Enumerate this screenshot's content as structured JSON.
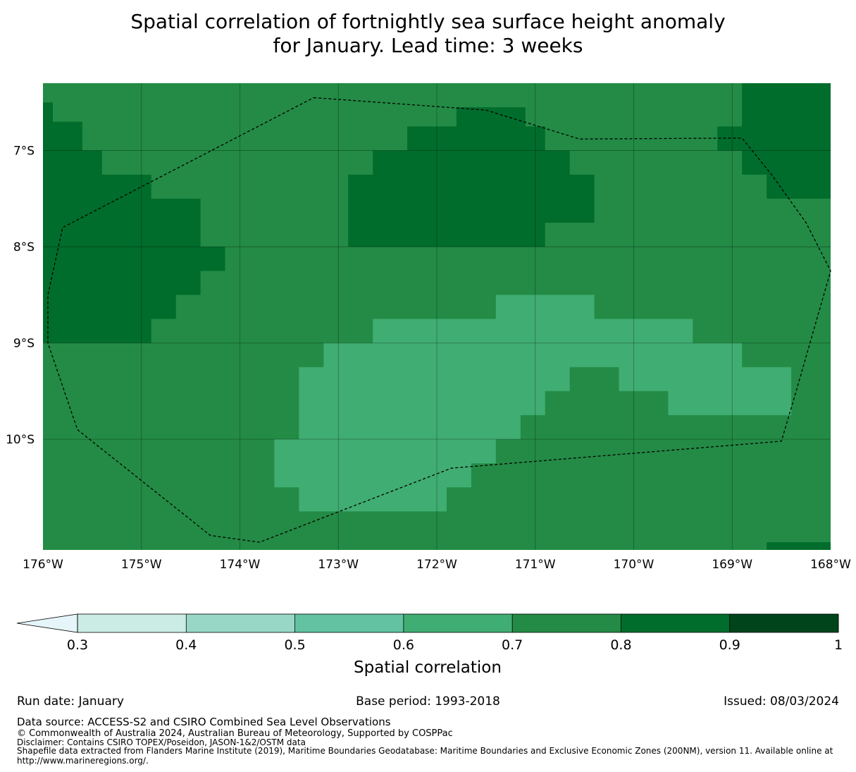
{
  "title_line1": "Spatial correlation of fortnightly sea surface height anomaly",
  "title_line2": "for January. Lead time: 3 weeks",
  "map": {
    "lon_range": [
      -176,
      -168
    ],
    "lat_range": [
      -11.15,
      -6.3
    ],
    "lon_ticks": [
      {
        "value": -176,
        "label": "176°W"
      },
      {
        "value": -175,
        "label": "175°W"
      },
      {
        "value": -174,
        "label": "174°W"
      },
      {
        "value": -173,
        "label": "173°W"
      },
      {
        "value": -172,
        "label": "172°W"
      },
      {
        "value": -171,
        "label": "171°W"
      },
      {
        "value": -170,
        "label": "170°W"
      },
      {
        "value": -169,
        "label": "169°W"
      },
      {
        "value": -168,
        "label": "168°W"
      }
    ],
    "lat_ticks": [
      {
        "value": -7,
        "label": "7°S"
      },
      {
        "value": -8,
        "label": "8°S"
      },
      {
        "value": -9,
        "label": "9°S"
      },
      {
        "value": -10,
        "label": "10°S"
      }
    ],
    "background_class": "0.7-0.8",
    "regions": [
      {
        "class": "0.8-0.9",
        "points": [
          [
            -176,
            -6.5
          ],
          [
            -175.9,
            -6.5
          ],
          [
            -175.9,
            -6.7
          ],
          [
            -175.6,
            -6.7
          ],
          [
            -175.6,
            -7
          ],
          [
            -175.4,
            -7
          ],
          [
            -175.4,
            -7.25
          ],
          [
            -174.9,
            -7.25
          ],
          [
            -174.9,
            -7.5
          ],
          [
            -174.4,
            -7.5
          ],
          [
            -174.4,
            -8
          ],
          [
            -174.15,
            -8
          ],
          [
            -174.15,
            -8.25
          ],
          [
            -174.4,
            -8.25
          ],
          [
            -174.4,
            -8.5
          ],
          [
            -174.65,
            -8.5
          ],
          [
            -174.65,
            -8.75
          ],
          [
            -174.9,
            -8.75
          ],
          [
            -174.9,
            -9
          ],
          [
            -176,
            -9
          ]
        ]
      },
      {
        "class": "0.8-0.9",
        "points": [
          [
            -171.8,
            -6.55
          ],
          [
            -171.1,
            -6.55
          ],
          [
            -171.1,
            -6.75
          ],
          [
            -170.9,
            -6.75
          ],
          [
            -170.9,
            -7
          ],
          [
            -170.65,
            -7
          ],
          [
            -170.65,
            -7.25
          ],
          [
            -170.4,
            -7.25
          ],
          [
            -170.4,
            -7.75
          ],
          [
            -170.9,
            -7.75
          ],
          [
            -170.9,
            -8
          ],
          [
            -172.9,
            -8
          ],
          [
            -172.9,
            -7.25
          ],
          [
            -172.65,
            -7.25
          ],
          [
            -172.65,
            -7
          ],
          [
            -172.3,
            -7
          ],
          [
            -172.3,
            -6.75
          ],
          [
            -171.8,
            -6.75
          ]
        ]
      },
      {
        "class": "0.8-0.9",
        "points": [
          [
            -168.9,
            -6.3
          ],
          [
            -168,
            -6.3
          ],
          [
            -168,
            -7.5
          ],
          [
            -168.65,
            -7.5
          ],
          [
            -168.65,
            -7.25
          ],
          [
            -168.9,
            -7.25
          ],
          [
            -168.9,
            -7
          ],
          [
            -169.15,
            -7
          ],
          [
            -169.15,
            -6.75
          ],
          [
            -168.9,
            -6.75
          ]
        ]
      },
      {
        "class": "0.8-0.9",
        "points": [
          [
            -168.65,
            -11.07
          ],
          [
            -168,
            -11.07
          ],
          [
            -168,
            -11.15
          ],
          [
            -168.65,
            -11.15
          ]
        ]
      },
      {
        "class": "0.6-0.7",
        "points": [
          [
            -171.4,
            -8.5
          ],
          [
            -170.4,
            -8.5
          ],
          [
            -170.4,
            -8.75
          ],
          [
            -169.4,
            -8.75
          ],
          [
            -169.4,
            -9
          ],
          [
            -168.9,
            -9
          ],
          [
            -168.9,
            -9.25
          ],
          [
            -168.4,
            -9.25
          ],
          [
            -168.4,
            -9.75
          ],
          [
            -169.65,
            -9.75
          ],
          [
            -169.65,
            -9.5
          ],
          [
            -170.15,
            -9.5
          ],
          [
            -170.15,
            -9.25
          ],
          [
            -170.65,
            -9.25
          ],
          [
            -170.65,
            -9.5
          ],
          [
            -170.9,
            -9.5
          ],
          [
            -170.9,
            -9.75
          ],
          [
            -171.15,
            -9.75
          ],
          [
            -171.15,
            -10
          ],
          [
            -171.4,
            -10
          ],
          [
            -171.4,
            -10.25
          ],
          [
            -171.65,
            -10.25
          ],
          [
            -171.65,
            -10.5
          ],
          [
            -171.9,
            -10.5
          ],
          [
            -171.9,
            -10.5
          ],
          [
            -171.9,
            -10.5
          ],
          [
            -171.9,
            -10.5
          ],
          [
            -171.9,
            -10.5
          ],
          [
            -171.9,
            -10.5
          ],
          [
            -171.9,
            -10.5
          ],
          [
            -171.9,
            -10.5
          ],
          [
            -171.9,
            -10.5
          ],
          [
            -171.9,
            -10.5
          ],
          [
            -171.9,
            -10.5
          ],
          [
            -171.9,
            -10.5
          ],
          [
            -171.9,
            -10.5
          ],
          [
            -171.9,
            -10.5
          ],
          [
            -171.9,
            -10.5
          ],
          [
            -171.9,
            -10.5
          ],
          [
            -171.9,
            -10.5
          ],
          [
            -171.9,
            -10.5
          ],
          [
            -171.9,
            -10.75
          ],
          [
            -173.4,
            -10.75
          ],
          [
            -173.4,
            -10.5
          ],
          [
            -173.65,
            -10.5
          ],
          [
            -173.65,
            -10
          ],
          [
            -173.4,
            -10
          ],
          [
            -173.4,
            -9.25
          ],
          [
            -173.15,
            -9.25
          ],
          [
            -173.15,
            -9
          ],
          [
            -172.65,
            -9
          ],
          [
            -172.65,
            -8.75
          ],
          [
            -171.4,
            -8.75
          ]
        ]
      }
    ],
    "eez_boundary": [
      [
        -173.25,
        -6.45
      ],
      [
        -171.5,
        -6.58
      ],
      [
        -170.55,
        -6.88
      ],
      [
        -168.9,
        -6.87
      ],
      [
        -168.6,
        -7.25
      ],
      [
        -168.25,
        -7.75
      ],
      [
        -168,
        -8.25
      ],
      [
        -168.35,
        -9.5
      ],
      [
        -168.5,
        -10.02
      ],
      [
        -171.85,
        -10.3
      ],
      [
        -173.8,
        -11.07
      ],
      [
        -174.3,
        -11
      ],
      [
        -175.65,
        -9.9
      ],
      [
        -175.95,
        -9
      ],
      [
        -175.95,
        -8.5
      ],
      [
        -175.8,
        -7.8
      ],
      [
        -173.25,
        -6.45
      ]
    ]
  },
  "colorbar": {
    "boundaries": [
      0.3,
      0.4,
      0.5,
      0.6,
      0.7,
      0.8,
      0.9,
      1.0
    ],
    "tick_labels": [
      "0.3",
      "0.4",
      "0.5",
      "0.6",
      "0.7",
      "0.8",
      "0.9",
      "1"
    ],
    "colors": [
      "#cbece4",
      "#98d7c6",
      "#62c2a1",
      "#40ad72",
      "#238b45",
      "#006d2c",
      "#00441b"
    ],
    "extend_min_color": "#e5f5f9",
    "label": "Spatial correlation"
  },
  "class_colors": {
    "0.6-0.7": "#40ad72",
    "0.7-0.8": "#238b45",
    "0.8-0.9": "#006d2c"
  },
  "footer": {
    "run_date": "Run date: January",
    "base_period": "Base period: 1993-2018",
    "issued": "Issued: 08/03/2024",
    "data_source": "Data source: ACCESS-S2 and CSIRO Combined Sea Level Observations",
    "copyright": "© Commonwealth of Australia 2024, Australian Bureau of Meteorology, Supported by COSPPac",
    "disclaimer": "Disclaimer: Contains CSIRO TOPEX/Poseidon, JASON-1&2/OSTM data",
    "shapefile": "Shapefile data extracted from Flanders Marine Institute (2019), Maritime Boundaries Geodatabase: Maritime Boundaries and Exclusive Economic Zones (200NM), version 11. Available online at http://www.marineregions.org/."
  }
}
